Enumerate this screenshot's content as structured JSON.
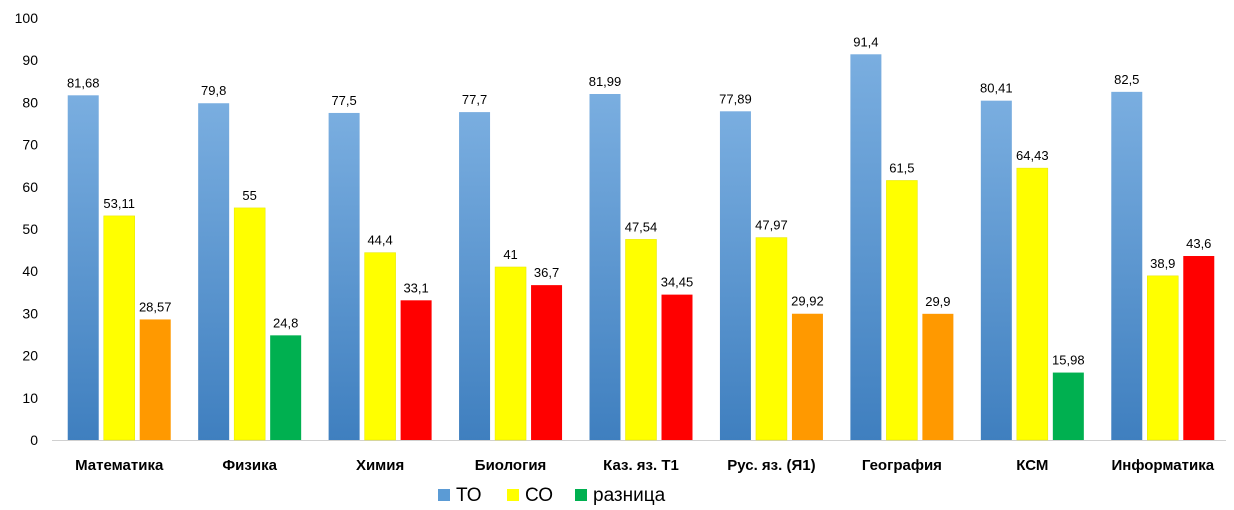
{
  "cut_title": "",
  "colors": {
    "to": "#5b9bd5",
    "co": "#ffff00",
    "diff_green": "#00b050",
    "diff_orange": "#ff9900",
    "diff_red": "#ff0000"
  },
  "chart_data": {
    "type": "bar",
    "title": "",
    "ylim": [
      0,
      100
    ],
    "yticks": [
      0,
      10,
      20,
      30,
      40,
      50,
      60,
      70,
      80,
      90,
      100
    ],
    "grid": false,
    "legend_position": "bottom",
    "categories": [
      "Математика",
      "Физика",
      "Химия",
      "Биология",
      "Каз. яз. Т1",
      "Рус. яз. (Я1)",
      "География",
      "КСМ",
      "Информатика"
    ],
    "series": [
      {
        "name": "ТО",
        "values": [
          81.68,
          79.8,
          77.5,
          77.7,
          81.99,
          77.89,
          91.4,
          80.41,
          82.5
        ],
        "labels": [
          "81,68",
          "79,8",
          "77,5",
          "77,7",
          "81,99",
          "77,89",
          "91,4",
          "80,41",
          "82,5"
        ]
      },
      {
        "name": "СО",
        "values": [
          53.11,
          55,
          44.4,
          41,
          47.54,
          47.97,
          61.5,
          64.43,
          38.9
        ],
        "labels": [
          "53,11",
          "55",
          "44,4",
          "41",
          "47,54",
          "47,97",
          "61,5",
          "64,43",
          "38,9"
        ]
      },
      {
        "name": "разница",
        "values": [
          28.57,
          24.8,
          33.1,
          36.7,
          34.45,
          29.92,
          29.9,
          15.98,
          43.6
        ],
        "labels": [
          "28,57",
          "24,8",
          "33,1",
          "36,7",
          "34,45",
          "29,92",
          "29,9",
          "15,98",
          "43,6"
        ],
        "bar_colors": [
          "diff_orange",
          "diff_green",
          "diff_red",
          "diff_red",
          "diff_red",
          "diff_orange",
          "diff_orange",
          "diff_green",
          "diff_red"
        ]
      }
    ]
  }
}
